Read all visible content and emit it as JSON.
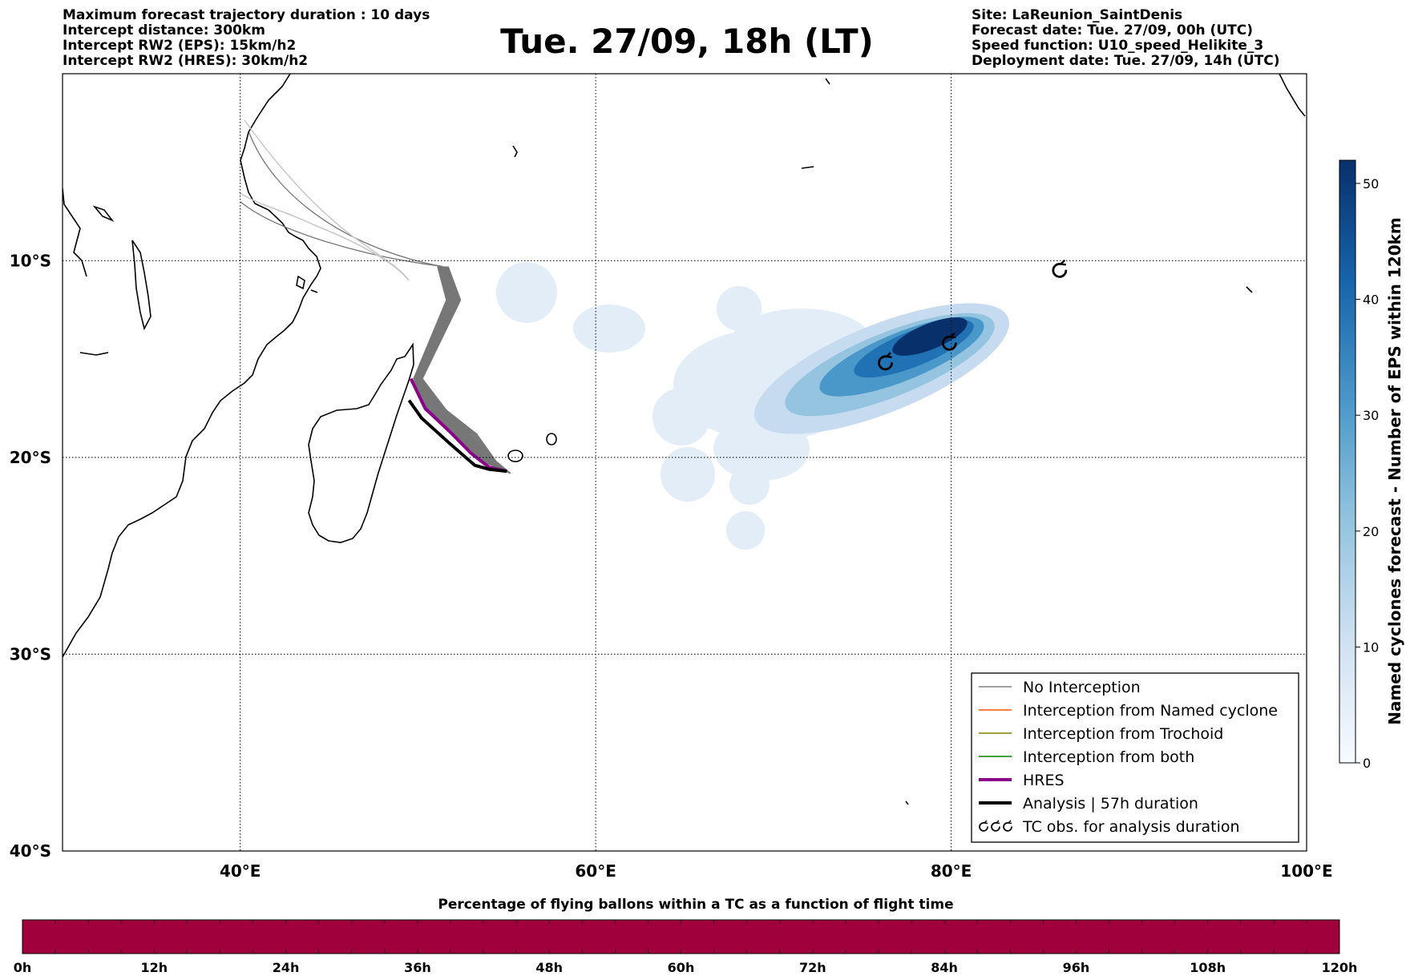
{
  "header": {
    "left": [
      "Maximum forecast trajectory duration : 10 days",
      "Intercept distance: 300km",
      "Intercept RW2 (EPS):  15km/h2",
      "Intercept RW2 (HRES): 30km/h2"
    ],
    "title": "Tue. 27/09, 18h (LT)",
    "right": [
      "Site: LaReunion_SaintDenis",
      "Forecast date: Tue. 27/09, 00h (UTC)",
      "Speed function: U10_speed_Helikite_3",
      "Deployment date: Tue. 27/09, 14h (UTC)"
    ]
  },
  "map": {
    "lon_range": [
      30,
      100
    ],
    "lat_range": [
      -40,
      -0.5
    ],
    "lon_ticks": [
      {
        "value": 40,
        "label": "40°E"
      },
      {
        "value": 60,
        "label": "60°E"
      },
      {
        "value": 80,
        "label": "80°E"
      },
      {
        "value": 100,
        "label": "100°E"
      }
    ],
    "lat_ticks": [
      {
        "value": -10,
        "label": "10°S"
      },
      {
        "value": -20,
        "label": "20°S"
      },
      {
        "value": -30,
        "label": "30°S"
      },
      {
        "value": -40,
        "label": "40°S"
      }
    ],
    "grid": "dotted"
  },
  "colorbar": {
    "label": "Named cyclones forecast - Number of EPS within 120km",
    "min": 0,
    "max": 52,
    "ticks": [
      "0",
      "10",
      "20",
      "30",
      "40",
      "50"
    ],
    "tick_values": [
      0,
      10,
      20,
      30,
      40,
      50
    ],
    "colormap": "Blues"
  },
  "legend": {
    "placement": "lower-right",
    "items": [
      {
        "label": "No Interception",
        "color": "#808080",
        "style": "thin"
      },
      {
        "label": "Interception from Named cyclone",
        "color": "#ff5500",
        "style": "thin"
      },
      {
        "label": "Interception from Trochoid",
        "color": "#808000",
        "style": "thin"
      },
      {
        "label": "Interception from both",
        "color": "#008000",
        "style": "thin"
      },
      {
        "label": "HRES",
        "color": "#8b008b",
        "style": "thick"
      },
      {
        "label": "Analysis | 57h duration",
        "color": "#000000",
        "style": "thick"
      },
      {
        "label": "TC obs. for analysis duration",
        "color": "#000000",
        "style": "symbol"
      }
    ]
  },
  "tc_obs": [
    {
      "lon": 76.3,
      "lat": -15.2
    },
    {
      "lon": 79.9,
      "lat": -14.2
    },
    {
      "lon": 86.1,
      "lat": -10.5
    }
  ],
  "trajectories": {
    "hres": [
      [
        49.6,
        -16.0
      ],
      [
        50.4,
        -17.5
      ],
      [
        51.8,
        -18.7
      ],
      [
        53.0,
        -19.8
      ],
      [
        54.0,
        -20.5
      ],
      [
        55.0,
        -20.7
      ]
    ],
    "analysis": [
      [
        49.5,
        -17.1
      ],
      [
        50.2,
        -18.0
      ],
      [
        51.8,
        -19.3
      ],
      [
        53.2,
        -20.4
      ],
      [
        54.0,
        -20.6
      ],
      [
        55.0,
        -20.7
      ]
    ],
    "eps_gray_count": 22
  },
  "bottom_bar": {
    "title": "Percentage of flying ballons within a TC as a function of flight time",
    "color": "#a0003c",
    "ticks": [
      "0h",
      "12h",
      "24h",
      "36h",
      "48h",
      "60h",
      "72h",
      "84h",
      "96h",
      "108h",
      "120h"
    ],
    "tick_values": [
      0,
      12,
      24,
      36,
      48,
      60,
      72,
      84,
      96,
      108,
      120
    ]
  }
}
